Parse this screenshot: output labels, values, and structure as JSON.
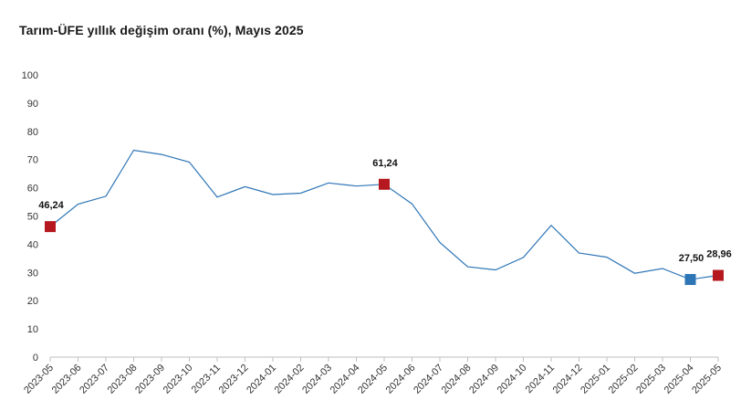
{
  "title": "Tarım-ÜFE yıllık değişim oranı (%), Mayıs 2025",
  "chart_data": {
    "type": "line",
    "title": "Tarım-ÜFE yıllık değişim oranı (%), Mayıs 2025",
    "xlabel": "",
    "ylabel": "",
    "ylim": [
      0,
      100
    ],
    "yticks": [
      "0",
      "10",
      "20",
      "30",
      "40",
      "50",
      "60",
      "70",
      "80",
      "90",
      "100"
    ],
    "grid": false,
    "categories": [
      "2023-05",
      "2023-06",
      "2023-07",
      "2023-08",
      "2023-09",
      "2023-10",
      "2023-11",
      "2023-12",
      "2024-01",
      "2024-02",
      "2024-03",
      "2024-04",
      "2024-05",
      "2024-06",
      "2024-07",
      "2024-08",
      "2024-09",
      "2024-10",
      "2024-11",
      "2024-12",
      "2025-01",
      "2025-02",
      "2025-03",
      "2025-04",
      "2025-05"
    ],
    "series": [
      {
        "color": "#2e75b6",
        "values": [
          46.24,
          54.2,
          57.0,
          73.3,
          71.8,
          69.1,
          56.7,
          60.4,
          57.6,
          58.1,
          61.7,
          60.6,
          61.24,
          54.3,
          40.6,
          32.0,
          30.9,
          35.3,
          46.7,
          36.9,
          35.4,
          29.7,
          31.4,
          27.5,
          28.96
        ]
      }
    ],
    "markers": [
      {
        "index": 0,
        "label": "46,24",
        "color": "#b5191f"
      },
      {
        "index": 12,
        "label": "61,24",
        "color": "#b5191f"
      },
      {
        "index": 23,
        "label": "27,50",
        "color": "#2e75b6"
      },
      {
        "index": 24,
        "label": "28,96",
        "color": "#b5191f"
      }
    ]
  }
}
